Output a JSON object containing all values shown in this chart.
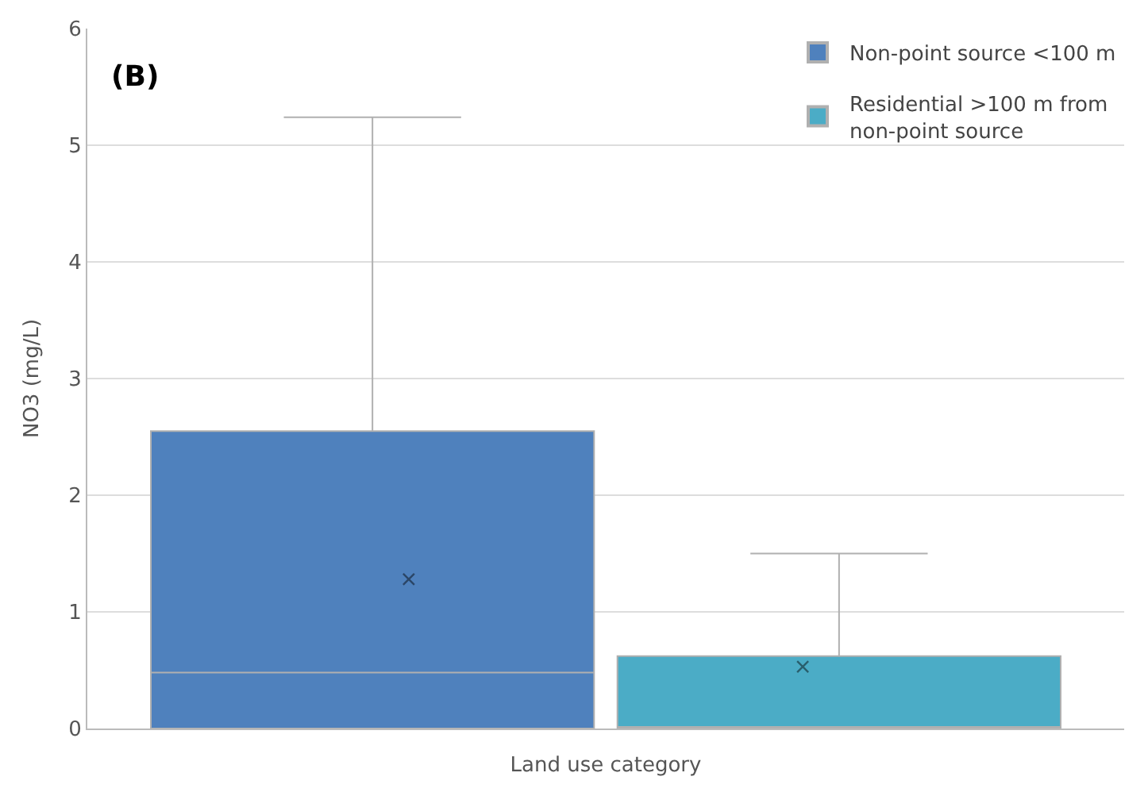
{
  "chart_data": {
    "type": "box",
    "title": "(B)",
    "xlabel": "Land use category",
    "ylabel": "NO3 (mg/L)",
    "categories": [
      null
    ],
    "series": [
      {
        "name": "Non-point source <100 m",
        "color": "#4f81bd",
        "boxes": [
          {
            "q1": 0,
            "median": 0.48,
            "q3": 2.55,
            "high": 5.24,
            "mean": 1.28
          }
        ]
      },
      {
        "name": "Residential >100 m from non-point source",
        "color": "#4bacc6",
        "boxes": [
          {
            "q1": 0,
            "median": 0,
            "q3": 0.62,
            "high": 1.5,
            "mean": 0.53
          }
        ]
      }
    ],
    "ylim": [
      0,
      6
    ],
    "yticks": [
      0,
      1,
      2,
      3,
      4,
      5,
      6
    ],
    "grid": "y",
    "legend": "top right"
  }
}
